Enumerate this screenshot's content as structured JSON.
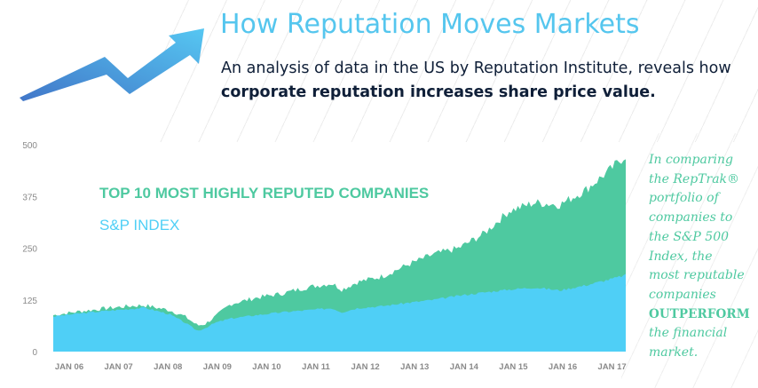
{
  "header": {
    "title": "How Reputation Moves Markets",
    "subtitle_part1": "An analysis of data in the US by Reputation Institute, reveals how ",
    "subtitle_bold": "corporate reputation increases share price value."
  },
  "colors": {
    "title": "#55c6ee",
    "reptrak": "#4ec9a0",
    "sp": "#4fcff6",
    "text_dark": "#0f1f38",
    "arrow_start": "#4176c8",
    "arrow_end": "#56c7f2",
    "tick": "#8a8a8a"
  },
  "sidebar": {
    "lines": [
      "In comparing",
      "the RepTrak®",
      "portfolio of",
      "companies to",
      "the S&P 500",
      "Index, the",
      "most reputable",
      "companies"
    ],
    "emphasis": "OUTPERFORM",
    "tail": [
      "the financial",
      "market."
    ]
  },
  "chart_data": {
    "type": "area",
    "title": "",
    "xlabel": "",
    "ylabel": "",
    "ylim": [
      0,
      500
    ],
    "yticks": [
      0,
      125,
      250,
      375,
      500
    ],
    "xticks": [
      "JAN 06",
      "JAN 07",
      "JAN 08",
      "JAN 09",
      "JAN 10",
      "JAN 11",
      "JAN 12",
      "JAN 13",
      "JAN 14",
      "JAN 15",
      "JAN 16",
      "JAN 17"
    ],
    "x": [
      2006.0,
      2006.5,
      2007.0,
      2007.5,
      2007.8,
      2008.0,
      2008.3,
      2008.6,
      2008.85,
      2009.0,
      2009.2,
      2009.5,
      2010.0,
      2010.5,
      2011.0,
      2011.5,
      2011.7,
      2012.0,
      2012.5,
      2013.0,
      2013.5,
      2014.0,
      2014.5,
      2015.0,
      2015.5,
      2016.0,
      2016.5,
      2017.0,
      2017.3
    ],
    "series": [
      {
        "name": "TOP 10 MOST HIGHLY REPUTED COMPANIES",
        "label_text": "TOP 10 MOST HIGHLY REPUTED COMPANIES",
        "values": [
          88,
          97,
          104,
          110,
          112,
          107,
          100,
          85,
          63,
          67,
          85,
          115,
          130,
          140,
          155,
          165,
          150,
          168,
          182,
          210,
          235,
          250,
          285,
          340,
          360,
          355,
          390,
          440,
          475
        ]
      },
      {
        "name": "S&P INDEX",
        "label_text": "S&P INDEX",
        "values": [
          85,
          92,
          98,
          103,
          106,
          100,
          90,
          70,
          50,
          57,
          70,
          80,
          88,
          95,
          100,
          105,
          95,
          105,
          110,
          118,
          125,
          135,
          143,
          150,
          155,
          148,
          160,
          175,
          185
        ]
      }
    ]
  }
}
